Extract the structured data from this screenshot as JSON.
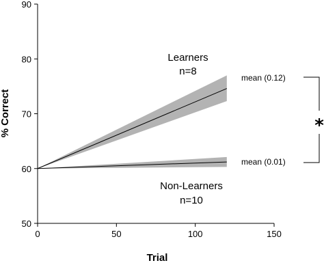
{
  "chart_data": {
    "type": "line",
    "xlabel": "Trial",
    "ylabel": "% Correct",
    "xlim": [
      0,
      150
    ],
    "ylim": [
      50,
      90
    ],
    "x_ticks": [
      0,
      50,
      100,
      150
    ],
    "y_ticks": [
      50,
      60,
      70,
      80,
      90
    ],
    "grid": false,
    "band_color": "#b3b3b3",
    "line_color": "#000000",
    "series": [
      {
        "label_lines": [
          "Learners",
          "n=8"
        ],
        "mean_label": "mean (0.12)",
        "x": [
          0,
          120
        ],
        "y": [
          60,
          74.6
        ],
        "band_upper": [
          60,
          77
        ],
        "band_lower": [
          60,
          72.3
        ]
      },
      {
        "label_lines": [
          "Non-Learners",
          "n=10"
        ],
        "mean_label": "mean (0.01)",
        "x": [
          0,
          120
        ],
        "y": [
          60,
          61.2
        ],
        "band_upper": [
          60,
          62.1
        ],
        "band_lower": [
          60,
          60.3
        ]
      }
    ],
    "significance_marker": "*"
  }
}
